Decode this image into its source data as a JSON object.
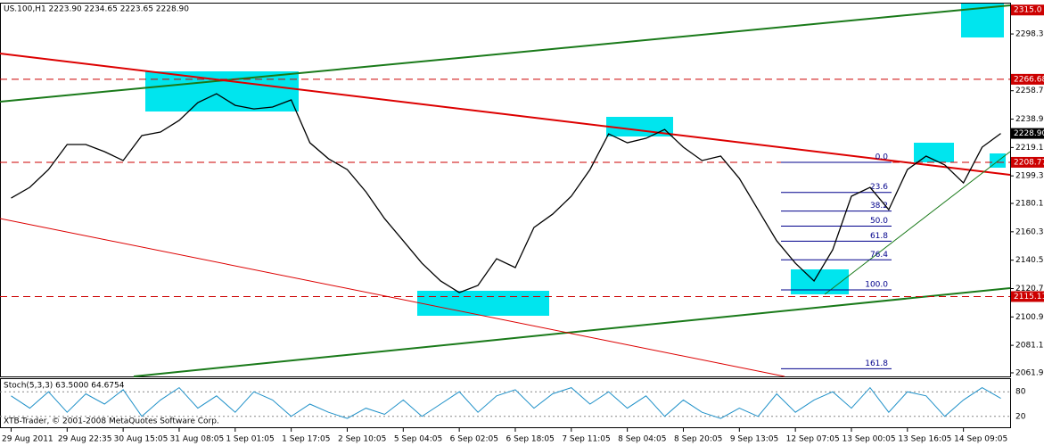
{
  "chart_data": {
    "type": "line",
    "title": "US.100,H1  2223.90 2234.65 2223.65 2228.90",
    "footer": "XTB-Trader, © 2001-2008 MetaQuotes Software Corp.",
    "categories": [
      "29 Aug 2011",
      null,
      null,
      "29 Aug 22:35",
      null,
      null,
      "30 Aug 15:05",
      null,
      null,
      "31 Aug 08:05",
      null,
      null,
      "1 Sep 01:05",
      null,
      null,
      "1 Sep 17:05",
      null,
      null,
      "2 Sep 10:05",
      null,
      null,
      "5 Sep 04:05",
      null,
      null,
      "6 Sep 02:05",
      null,
      null,
      "6 Sep 18:05",
      null,
      null,
      "7 Sep 11:05",
      null,
      null,
      "8 Sep 04:05",
      null,
      null,
      "8 Sep 20:05",
      null,
      null,
      "9 Sep 13:05",
      null,
      null,
      "12 Sep 07:05",
      null,
      null,
      "13 Sep 00:05",
      null,
      null,
      "13 Sep 16:05",
      null,
      null,
      "14 Sep 09:05",
      null,
      null
    ],
    "series": [
      {
        "name": "US.100,H1",
        "color": "#000000",
        "values": [
          2183.8,
          2191.3,
          2203.7,
          2221.2,
          2221.2,
          2216.2,
          2210.0,
          2227.4,
          2229.9,
          2238.0,
          2250.4,
          2256.6,
          2248.5,
          2246.0,
          2247.3,
          2252.3,
          2222.4,
          2211.2,
          2203.7,
          2188.2,
          2169.5,
          2154.0,
          2138.4,
          2126.0,
          2117.9,
          2122.9,
          2141.5,
          2135.3,
          2163.3,
          2172.6,
          2185.1,
          2203.7,
          2228.6,
          2222.4,
          2225.5,
          2231.7,
          2219.3,
          2210.0,
          2213.1,
          2197.5,
          2175.7,
          2154.0,
          2138.4,
          2126.0,
          2147.8,
          2185.1,
          2191.3,
          2175.7,
          2203.7,
          2213.1,
          2206.9,
          2194.4,
          2219.3,
          2228.9
        ]
      }
    ],
    "ylim": [
      2059.4,
      2319.5
    ],
    "yticks": [
      {
        "value": 2298.3,
        "label": "2298.30"
      },
      {
        "value": 2258.7,
        "label": "2258.70"
      },
      {
        "value": 2238.9,
        "label": "2238.90"
      },
      {
        "value": 2219.1,
        "label": "2219.10"
      },
      {
        "value": 2199.3,
        "label": "2199.30"
      },
      {
        "value": 2180.1,
        "label": "2180.10"
      },
      {
        "value": 2160.3,
        "label": "2160.30"
      },
      {
        "value": 2140.5,
        "label": "2140.50"
      },
      {
        "value": 2120.7,
        "label": "2120.70"
      },
      {
        "value": 2100.9,
        "label": "2100.90"
      },
      {
        "value": 2081.1,
        "label": "2081.10"
      },
      {
        "value": 2061.9,
        "label": "2061.90"
      }
    ],
    "levels": [
      {
        "value": 2315.0,
        "label": "2315.0",
        "color": "#cc0000",
        "line": false
      },
      {
        "value": 2266.68,
        "label": "2266.68",
        "color": "#cc0000",
        "line": true
      },
      {
        "value": 2228.9,
        "label": "2228.90",
        "color": "#000000",
        "line": false
      },
      {
        "value": 2208.77,
        "label": "2208.77",
        "color": "#cc0000",
        "line": true
      },
      {
        "value": 2115.11,
        "label": "2115.11",
        "color": "#cc0000",
        "line": true
      }
    ],
    "fib_levels": [
      {
        "value": 0,
        "label": "0.0"
      },
      {
        "value": 23.6,
        "label": "23.6"
      },
      {
        "value": 38.2,
        "label": "38.2"
      },
      {
        "value": 50,
        "label": "50.0"
      },
      {
        "value": 61.8,
        "label": "61.8"
      },
      {
        "value": 76.4,
        "label": "76.4"
      },
      {
        "value": 100,
        "label": "100.0"
      },
      {
        "value": 161.8,
        "label": "161.8"
      }
    ],
    "stoch": {
      "title": "Stoch(5,3,3) 63.5000 64.6754",
      "color": "#1e90c8",
      "values": [
        70,
        40,
        80,
        30,
        75,
        50,
        85,
        20,
        60,
        90,
        40,
        70,
        30,
        80,
        60,
        20,
        50,
        30,
        15,
        40,
        25,
        60,
        20,
        50,
        80,
        30,
        70,
        85,
        40,
        75,
        90,
        50,
        80,
        40,
        70,
        20,
        60,
        30,
        15,
        40,
        20,
        75,
        30,
        60,
        80,
        40,
        90,
        30,
        80,
        70,
        20,
        60,
        90,
        64
      ],
      "ylim": [
        0,
        100
      ],
      "yticks": [
        80,
        20
      ]
    }
  }
}
